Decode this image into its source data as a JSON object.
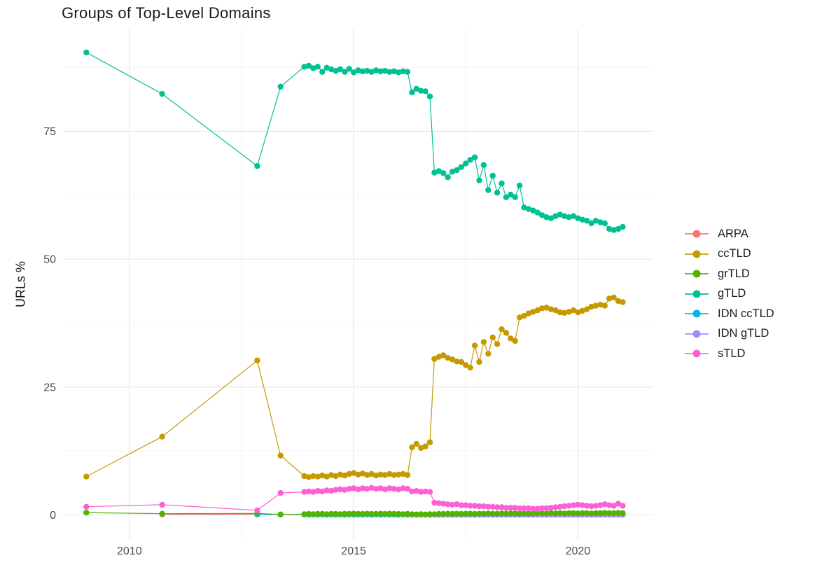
{
  "chart_data": {
    "type": "line",
    "title": "Groups of Top-Level Domains",
    "ylabel": "URLs %",
    "xlabel": "",
    "xlim": [
      2008.52,
      2021.68
    ],
    "ylim": [
      -4.72,
      94.9
    ],
    "xticks": [
      2010,
      2015,
      2020
    ],
    "yticks": [
      0,
      25,
      50,
      75
    ],
    "xticks_minor": [
      2012.5,
      2017.5
    ],
    "yticks_minor": [
      12.5,
      37.5,
      62.5,
      87.5
    ],
    "grid": true,
    "legend_position": "right",
    "x_monthly": [
      2013.9,
      2014,
      2014.1,
      2014.2,
      2014.3,
      2014.4,
      2014.5,
      2014.6,
      2014.7,
      2014.8,
      2014.9,
      2015,
      2015.1,
      2015.2,
      2015.3,
      2015.4,
      2015.5,
      2015.6,
      2015.7,
      2015.8,
      2015.9,
      2016,
      2016.1,
      2016.2,
      2016.3,
      2016.4,
      2016.5,
      2016.6,
      2016.7,
      2016.8,
      2016.9,
      2017,
      2017.1,
      2017.2,
      2017.3,
      2017.4,
      2017.5,
      2017.6,
      2017.7,
      2017.8,
      2017.9,
      2018,
      2018.1,
      2018.2,
      2018.3,
      2018.4,
      2018.5,
      2018.6,
      2018.7,
      2018.8,
      2018.9,
      2019,
      2019.1,
      2019.2,
      2019.3,
      2019.4,
      2019.5,
      2019.6,
      2019.7,
      2019.8,
      2019.9,
      2020,
      2020.1,
      2020.2,
      2020.3,
      2020.4,
      2020.5,
      2020.6,
      2020.7,
      2020.8,
      2020.9,
      2021
    ],
    "x_2016_on": [
      2016.3,
      2016.4,
      2016.5,
      2016.6,
      2016.7,
      2016.8,
      2016.9,
      2017,
      2017.1,
      2017.2,
      2017.3,
      2017.4,
      2017.5,
      2017.6,
      2017.7,
      2017.8,
      2017.9,
      2018,
      2018.1,
      2018.2,
      2018.3,
      2018.4,
      2018.5,
      2018.6,
      2018.7,
      2018.8,
      2018.9,
      2019,
      2019.1,
      2019.2,
      2019.3,
      2019.4,
      2019.5,
      2019.6,
      2019.7,
      2019.8,
      2019.9,
      2020,
      2020.1,
      2020.2,
      2020.3,
      2020.4,
      2020.5,
      2020.6,
      2020.7,
      2020.8,
      2020.9,
      2021
    ],
    "series": [
      {
        "name": "ARPA",
        "color": "#F8766D",
        "x_pre": [
          2010.73,
          2012.85
        ],
        "y_pre": [
          0.1,
          0.15
        ]
      },
      {
        "name": "ccTLD",
        "color": "#C49A00",
        "x_pre": [
          2009.04,
          2010.73,
          2012.85,
          2013.37
        ],
        "y_pre": [
          7.5,
          15.3,
          30.2,
          11.6
        ],
        "x_ref": "x_monthly",
        "y": [
          7.6,
          7.4,
          7.6,
          7.5,
          7.7,
          7.5,
          7.8,
          7.6,
          7.9,
          7.7,
          8,
          8.2,
          7.9,
          8.1,
          7.8,
          8,
          7.7,
          7.9,
          7.8,
          8,
          7.8,
          7.9,
          8,
          7.8,
          13.2,
          13.9,
          13.1,
          13.4,
          14.2,
          30.5,
          30.9,
          31.2,
          30.7,
          30.4,
          30,
          29.9,
          29.3,
          28.8,
          33.1,
          29.9,
          33.8,
          31.5,
          34.7,
          33.4,
          36.3,
          35.6,
          34.5,
          34,
          38.6,
          38.9,
          39.4,
          39.7,
          40,
          40.4,
          40.5,
          40.2,
          40,
          39.6,
          39.5,
          39.7,
          40,
          39.6,
          39.9,
          40.2,
          40.7,
          40.9,
          41.1,
          40.9,
          42.3,
          42.5,
          41.8,
          41.6
        ]
      },
      {
        "name": "grTLD",
        "color": "#53B400",
        "x_pre": [
          2009.04,
          2010.73,
          2012.85,
          2013.37
        ],
        "y_pre": [
          0.45,
          0.25,
          0.3,
          0.1
        ],
        "x_ref": "x_monthly",
        "y": [
          0.15,
          0.2,
          0.15,
          0.2,
          0.2,
          0.15,
          0.2,
          0.2,
          0.15,
          0.2,
          0.2,
          0.25,
          0.2,
          0.2,
          0.25,
          0.2,
          0.2,
          0.25,
          0.2,
          0.25,
          0.2,
          0.2,
          0.15,
          0.2,
          0.15,
          0.1,
          0.15,
          0.1,
          0.15,
          0.15,
          0.2,
          0.2,
          0.25,
          0.2,
          0.25,
          0.2,
          0.25,
          0.25,
          0.2,
          0.25,
          0.25,
          0.3,
          0.25,
          0.25,
          0.3,
          0.25,
          0.3,
          0.3,
          0.25,
          0.3,
          0.3,
          0.3,
          0.35,
          0.3,
          0.3,
          0.35,
          0.3,
          0.35,
          0.3,
          0.35,
          0.35,
          0.3,
          0.35,
          0.35,
          0.3,
          0.35,
          0.35,
          0.4,
          0.35,
          0.35,
          0.4,
          0.35
        ]
      },
      {
        "name": "gTLD",
        "color": "#00C094",
        "x_pre": [
          2009.04,
          2010.73,
          2012.85,
          2013.37
        ],
        "y_pre": [
          90.4,
          82.3,
          68.2,
          83.7
        ],
        "x_ref": "x_monthly",
        "y": [
          87.6,
          87.8,
          87.3,
          87.6,
          86.6,
          87.4,
          87.1,
          86.8,
          87.1,
          86.6,
          87.2,
          86.5,
          86.9,
          86.7,
          86.8,
          86.6,
          86.9,
          86.7,
          86.8,
          86.6,
          86.7,
          86.5,
          86.7,
          86.6,
          82.6,
          83.3,
          82.9,
          82.8,
          81.8,
          66.9,
          67.2,
          66.8,
          66,
          67.1,
          67.4,
          68,
          68.7,
          69.4,
          69.9,
          65.4,
          68.4,
          63.5,
          66.3,
          63,
          64.8,
          62.1,
          62.6,
          62.1,
          64.4,
          60.1,
          59.8,
          59.5,
          59.1,
          58.6,
          58.2,
          58,
          58.4,
          58.7,
          58.4,
          58.2,
          58.4,
          58,
          57.7,
          57.5,
          57,
          57.5,
          57.2,
          57,
          55.9,
          55.7,
          55.9,
          56.3
        ]
      },
      {
        "name": "IDN ccTLD",
        "color": "#00B6EB",
        "x_pre": [
          2012.85,
          2013.37
        ],
        "y_pre": [
          0.1,
          0.08
        ],
        "x_ref": "x_monthly",
        "y": [
          0.08,
          0.06,
          0.08,
          0.06,
          0.08,
          0.06,
          0.08,
          0.06,
          0.08,
          0.06,
          0.08,
          0.06,
          0.08,
          0.06,
          0.08,
          0.06,
          0.08,
          0.06,
          0.08,
          0.06,
          0.08,
          0.06,
          0.08,
          0.06,
          0.08,
          0.06,
          0.08,
          0.06,
          0.08,
          0.06,
          0.08,
          0.06,
          0.08,
          0.06,
          0.08,
          0.06,
          0.08,
          0.06,
          0.08,
          0.06,
          0.08,
          0.06,
          0.08,
          0.06,
          0.08,
          0.06,
          0.08,
          0.06,
          0.08,
          0.06,
          0.08,
          0.06,
          0.08,
          0.06,
          0.08,
          0.06,
          0.08,
          0.06,
          0.08,
          0.06,
          0.08,
          0.06,
          0.08,
          0.06,
          0.08,
          0.06,
          0.08,
          0.06,
          0.08,
          0.06,
          0.08,
          0.06
        ]
      },
      {
        "name": "IDN gTLD",
        "color": "#A58AFF",
        "x_ref": "x_2016_on",
        "y": [
          0.03,
          0.05,
          0.03,
          0.05,
          0.03,
          0.05,
          0.03,
          0.05,
          0.03,
          0.05,
          0.03,
          0.05,
          0.03,
          0.05,
          0.03,
          0.05,
          0.03,
          0.05,
          0.03,
          0.05,
          0.03,
          0.05,
          0.03,
          0.05,
          0.03,
          0.05,
          0.03,
          0.05,
          0.03,
          0.05,
          0.03,
          0.05,
          0.03,
          0.05,
          0.03,
          0.05,
          0.03,
          0.05,
          0.03,
          0.05,
          0.03,
          0.05,
          0.03,
          0.05,
          0.03,
          0.05,
          0.03,
          0.05
        ]
      },
      {
        "name": "sTLD",
        "color": "#FB61D7",
        "x_pre": [
          2009.04,
          2010.73,
          2012.85,
          2013.37
        ],
        "y_pre": [
          1.6,
          2,
          0.9,
          4.3
        ],
        "x_ref": "x_monthly",
        "y": [
          4.5,
          4.6,
          4.5,
          4.7,
          4.6,
          4.8,
          4.7,
          4.9,
          5,
          4.9,
          5.1,
          5.2,
          5,
          5.2,
          5.1,
          5.3,
          5.1,
          5.2,
          5,
          5.2,
          5.1,
          5,
          5.2,
          5.1,
          4.6,
          4.7,
          4.5,
          4.6,
          4.5,
          2.4,
          2.3,
          2.2,
          2.1,
          2,
          2.1,
          1.9,
          1.9,
          1.8,
          1.8,
          1.7,
          1.7,
          1.6,
          1.6,
          1.5,
          1.5,
          1.4,
          1.4,
          1.4,
          1.3,
          1.3,
          1.3,
          1.2,
          1.2,
          1.3,
          1.3,
          1.4,
          1.5,
          1.6,
          1.7,
          1.8,
          1.9,
          2,
          1.9,
          1.8,
          1.7,
          1.8,
          1.9,
          2.1,
          1.9,
          1.8,
          2.2,
          1.8
        ]
      }
    ]
  }
}
